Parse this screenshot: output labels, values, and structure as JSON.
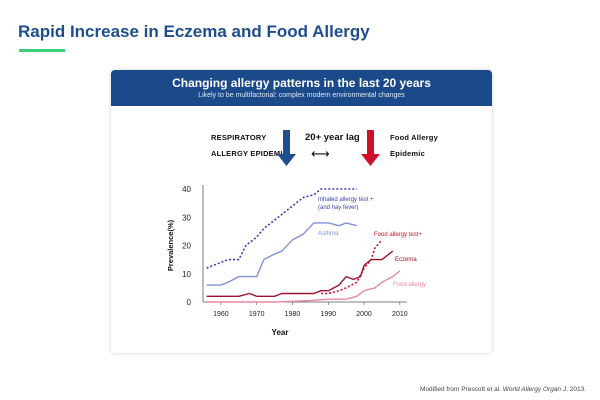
{
  "slide": {
    "title": "Rapid Increase in Eczema and Food Allergy",
    "accent_color": "#3ccf7a",
    "title_color": "#1f4e8c"
  },
  "card": {
    "title": "Changing allergy patterns in the last 20 years",
    "subtitle": "Likely to be multifactorial: complex modern environmental changes",
    "header_color": "#1b4a8a"
  },
  "callouts": {
    "left_line1": "RESPIRATORY",
    "left_line2": "ALLERGY EPIDEMIC",
    "lag": "20+ year lag",
    "lag_arrow": "⟷",
    "right_line1": "Food Allergy",
    "right_line2": "Epidemic",
    "left_arrow_color": "#1f4e8c",
    "right_arrow_color": "#d0102a"
  },
  "chart_data": {
    "type": "line",
    "xlabel": "Year",
    "ylabel": "Prevalence(%)",
    "xlim": [
      1955,
      2012
    ],
    "ylim": [
      0,
      40
    ],
    "x_ticks": [
      1960,
      1970,
      1980,
      1990,
      2000,
      2010
    ],
    "y_ticks": [
      0,
      10,
      20,
      30,
      40
    ],
    "series": [
      {
        "name": "Inhaled allergy test + (and hay fever)",
        "label_line1": "Inhaled allergy test +",
        "label_line2": "(and hay fever)",
        "color": "#3a3fb5",
        "style": "dotted",
        "x": [
          1956,
          1960,
          1962,
          1964,
          1965,
          1967,
          1968,
          1970,
          1972,
          1975,
          1978,
          1980,
          1983,
          1986,
          1988,
          1990,
          1992,
          1995,
          1998
        ],
        "y": [
          12,
          14,
          15,
          15,
          15,
          20,
          21,
          23,
          26,
          29,
          32,
          34,
          37,
          38,
          40,
          40,
          40,
          40,
          40
        ]
      },
      {
        "name": "Asthma",
        "color": "#7f93d6",
        "style": "solid",
        "x": [
          1956,
          1960,
          1962,
          1965,
          1967,
          1970,
          1972,
          1975,
          1977,
          1980,
          1983,
          1986,
          1988,
          1990,
          1993,
          1995,
          1998
        ],
        "y": [
          6,
          6,
          7,
          9,
          9,
          9,
          15,
          17,
          18,
          22,
          24,
          28,
          28,
          28,
          27,
          28,
          27
        ]
      },
      {
        "name": "Food allergy test+",
        "color": "#c8102e",
        "style": "dotted",
        "x": [
          1988,
          1990,
          1993,
          1995,
          1998,
          2000,
          2002,
          2003,
          2005
        ],
        "y": [
          3,
          3,
          4,
          5,
          7,
          12,
          15,
          19,
          22
        ]
      },
      {
        "name": "Eczema",
        "color": "#9e1230",
        "style": "solid",
        "x": [
          1956,
          1960,
          1965,
          1968,
          1970,
          1975,
          1977,
          1980,
          1983,
          1986,
          1988,
          1990,
          1993,
          1995,
          1997,
          1999,
          2000,
          2002,
          2005,
          2008
        ],
        "y": [
          2,
          2,
          2,
          3,
          2,
          2,
          3,
          3,
          3,
          3,
          4,
          4,
          6,
          9,
          8,
          9,
          13,
          15,
          15,
          18
        ]
      },
      {
        "name": "Food allergy",
        "color": "#e88aa0",
        "style": "solid",
        "x": [
          1956,
          1965,
          1975,
          1985,
          1990,
          1995,
          1998,
          2000,
          2003,
          2005,
          2008,
          2010
        ],
        "y": [
          0,
          0,
          0,
          0.5,
          1,
          1,
          2,
          4,
          5,
          7,
          9,
          11
        ]
      }
    ]
  },
  "footer": {
    "source_prefix": "Modified from Prescott et al. ",
    "source_journal": "World Allergy Organ J",
    "source_suffix": ". 2013."
  }
}
